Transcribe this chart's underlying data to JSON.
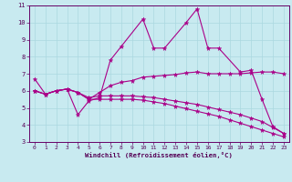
{
  "xlabel": "Windchill (Refroidissement éolien,°C)",
  "xlim": [
    -0.5,
    23.5
  ],
  "ylim": [
    3,
    11
  ],
  "xticks": [
    0,
    1,
    2,
    3,
    4,
    5,
    6,
    7,
    8,
    9,
    10,
    11,
    12,
    13,
    14,
    15,
    16,
    17,
    18,
    19,
    20,
    21,
    22,
    23
  ],
  "yticks": [
    3,
    4,
    5,
    6,
    7,
    8,
    9,
    10,
    11
  ],
  "bg_color": "#c8eaf0",
  "line_color": "#aa0088",
  "grid_color": "#aad8e0",
  "lines": [
    {
      "x": [
        0,
        1,
        2,
        3,
        4,
        5,
        6,
        7,
        8,
        10,
        11,
        12,
        14,
        15,
        16,
        17,
        19,
        20,
        21,
        22,
        23
      ],
      "y": [
        6.7,
        5.8,
        6.0,
        6.1,
        4.6,
        5.4,
        5.6,
        7.8,
        8.6,
        10.2,
        8.5,
        8.5,
        10.0,
        10.8,
        8.5,
        8.5,
        7.1,
        7.2,
        5.5,
        3.9,
        3.5
      ]
    },
    {
      "x": [
        0,
        1,
        2,
        3,
        4,
        5,
        6,
        7,
        8,
        9,
        10,
        11,
        12,
        13,
        14,
        15,
        16,
        17,
        18,
        19,
        20,
        21,
        22,
        23
      ],
      "y": [
        6.0,
        5.8,
        6.0,
        6.1,
        5.9,
        5.5,
        5.9,
        6.3,
        6.5,
        6.6,
        6.8,
        6.85,
        6.9,
        6.95,
        7.05,
        7.1,
        7.0,
        7.0,
        7.0,
        7.0,
        7.05,
        7.1,
        7.1,
        7.0
      ]
    },
    {
      "x": [
        0,
        1,
        2,
        3,
        4,
        5,
        6,
        7,
        8,
        9,
        10,
        11,
        12,
        13,
        14,
        15,
        16,
        17,
        18,
        19,
        20,
        21,
        22,
        23
      ],
      "y": [
        6.0,
        5.8,
        6.0,
        6.1,
        5.9,
        5.6,
        5.7,
        5.7,
        5.7,
        5.7,
        5.65,
        5.6,
        5.5,
        5.4,
        5.3,
        5.2,
        5.05,
        4.9,
        4.75,
        4.6,
        4.4,
        4.2,
        3.85,
        3.5
      ]
    },
    {
      "x": [
        0,
        1,
        2,
        3,
        4,
        5,
        6,
        7,
        8,
        9,
        10,
        11,
        12,
        13,
        14,
        15,
        16,
        17,
        18,
        19,
        20,
        21,
        22,
        23
      ],
      "y": [
        6.0,
        5.8,
        6.0,
        6.1,
        5.9,
        5.5,
        5.5,
        5.5,
        5.5,
        5.5,
        5.45,
        5.35,
        5.25,
        5.1,
        4.95,
        4.8,
        4.65,
        4.5,
        4.3,
        4.1,
        3.9,
        3.7,
        3.5,
        3.3
      ]
    }
  ]
}
